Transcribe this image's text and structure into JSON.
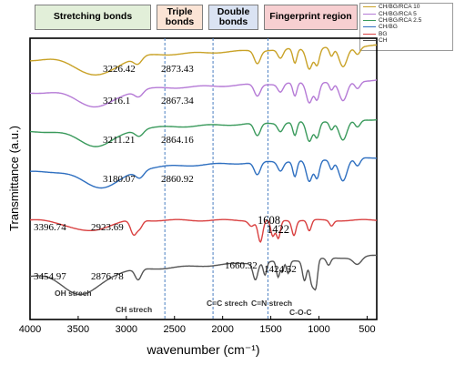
{
  "regions": [
    {
      "label": "Stretching bonds",
      "bg": "#e2efd9"
    },
    {
      "label": "Triple bonds",
      "bg": "#fbe4d5"
    },
    {
      "label": "Double bonds",
      "bg": "#dae3f3"
    },
    {
      "label": "Fingerprint region",
      "bg": "#f7cfd1"
    }
  ],
  "legend": [
    {
      "label": "CH/BG/RCA 10",
      "color": "#c9a227"
    },
    {
      "label": "CH/BG/RCA 5",
      "color": "#b57ad6"
    },
    {
      "label": "CH/BG/RCA 2.5",
      "color": "#3a9a5c"
    },
    {
      "label": "CH/BG",
      "color": "#2e6fc0"
    },
    {
      "label": "BG",
      "color": "#d94040"
    },
    {
      "label": "CH",
      "color": "#555555"
    }
  ],
  "chart_data": {
    "type": "line",
    "xlabel": "wavenumber (cm⁻¹)",
    "ylabel": "Transmittance (a.u.)",
    "xlim": [
      4000,
      400
    ],
    "xticks": [
      4000,
      3500,
      3000,
      2500,
      2000,
      1500,
      1000,
      500
    ],
    "dashed_lines": [
      2600,
      2100,
      1530
    ],
    "series": [
      {
        "name": "CH/BG/RCA 10",
        "color": "#c9a227",
        "peak_labels": [
          {
            "x": 3226.42,
            "text": "3226.42"
          },
          {
            "x": 2873.43,
            "text": "2873.43"
          }
        ]
      },
      {
        "name": "CH/BG/RCA 5",
        "color": "#b57ad6",
        "peak_labels": [
          {
            "x": 3216.1,
            "text": "3216.1"
          },
          {
            "x": 2867.34,
            "text": "2867.34"
          }
        ]
      },
      {
        "name": "CH/BG/RCA 2.5",
        "color": "#3a9a5c",
        "peak_labels": [
          {
            "x": 3211.21,
            "text": "3211.21"
          },
          {
            "x": 2864.16,
            "text": "2864.16"
          }
        ]
      },
      {
        "name": "CH/BG",
        "color": "#2e6fc0",
        "peak_labels": [
          {
            "x": 3180.07,
            "text": "3180.07"
          },
          {
            "x": 2860.92,
            "text": "2860.92"
          }
        ]
      },
      {
        "name": "BG",
        "color": "#d94040",
        "peak_labels": [
          {
            "x": 3396.74,
            "text": "3396.74"
          },
          {
            "x": 2923.69,
            "text": "2923.69"
          },
          {
            "x": 1608,
            "text": "1608"
          },
          {
            "x": 1422,
            "text": "1422"
          }
        ]
      },
      {
        "name": "CH",
        "color": "#555555",
        "peak_labels": [
          {
            "x": 3454.97,
            "text": "3454.97"
          },
          {
            "x": 2876.78,
            "text": "2876.78"
          },
          {
            "x": 1660.32,
            "text": "1660.32"
          },
          {
            "x": 1424.52,
            "text": "1424.52"
          }
        ]
      }
    ],
    "annotations": [
      "OH strech",
      "CH strech",
      "C=C strech",
      "C=N strech",
      "C-O-C"
    ]
  }
}
